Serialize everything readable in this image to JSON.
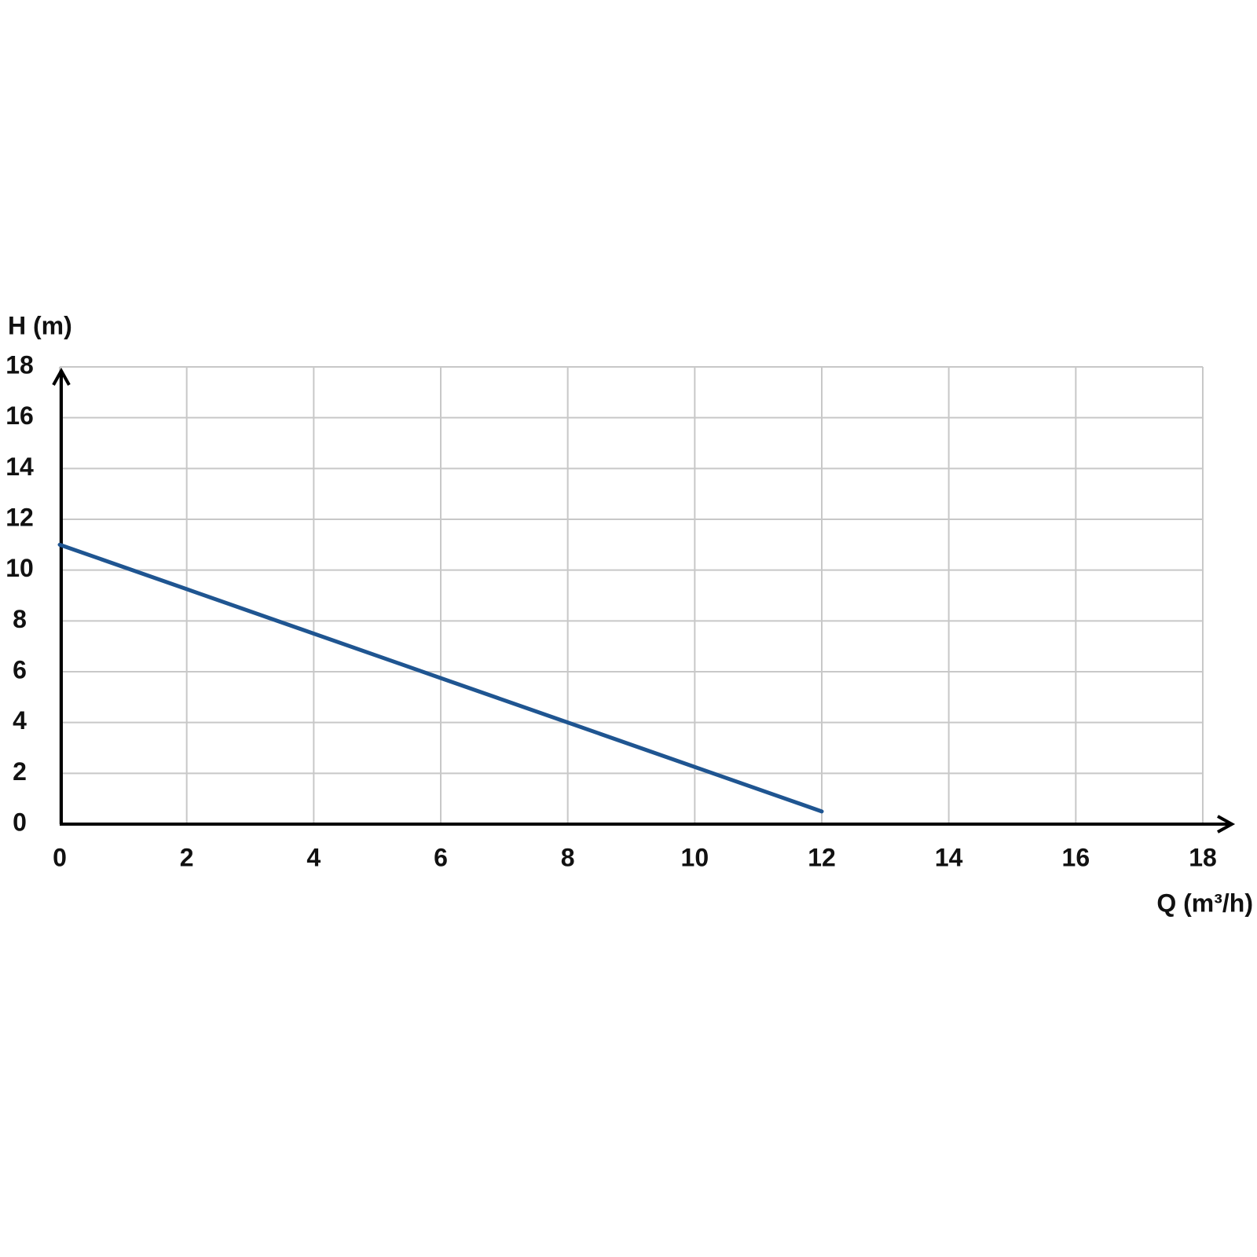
{
  "chart_data": {
    "type": "line",
    "x_label": "Q (m³/h)",
    "y_label": "H (m)",
    "x": [
      0,
      2,
      4,
      6,
      8,
      10,
      12
    ],
    "series": [
      {
        "color": "#1f5591",
        "values": [
          11,
          9.25,
          7.5,
          5.75,
          4,
          2.25,
          0.5
        ]
      }
    ],
    "xlim": [
      0,
      18
    ],
    "ylim": [
      0,
      18
    ],
    "xticks": [
      0,
      2,
      4,
      6,
      8,
      10,
      12,
      14,
      16,
      18
    ],
    "yticks": [
      0,
      2,
      4,
      6,
      8,
      10,
      12,
      14,
      16,
      18
    ],
    "grid": true
  }
}
